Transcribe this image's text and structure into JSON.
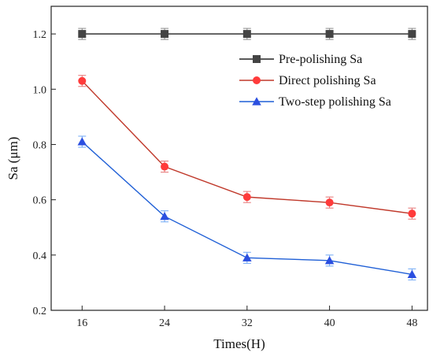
{
  "chart_data": {
    "type": "line",
    "title": "",
    "xlabel": "Times(H)",
    "ylabel": "Sa (μm)",
    "x": [
      16,
      24,
      32,
      40,
      48
    ],
    "xlim": [
      13,
      49.5
    ],
    "ylim": [
      0.2,
      1.3
    ],
    "xticks": [
      16,
      24,
      32,
      40,
      48
    ],
    "yticks": [
      0.2,
      0.4,
      0.6,
      0.8,
      1.0,
      1.2
    ],
    "ytick_labels": [
      "0.2",
      "0.4",
      "0.6",
      "0.8",
      "1.0",
      "1.2"
    ],
    "legend_position": "top-right",
    "grid": false,
    "series": [
      {
        "name": "Pre-polishing Sa",
        "values": [
          1.2,
          1.2,
          1.2,
          1.2,
          1.2
        ],
        "errors": [
          0.02,
          0.02,
          0.02,
          0.02,
          0.02
        ],
        "marker": "square",
        "line_color": "#222222",
        "marker_color": "#444444",
        "error_color": "#888888"
      },
      {
        "name": "Direct polishing Sa",
        "values": [
          1.03,
          0.72,
          0.61,
          0.59,
          0.55
        ],
        "errors": [
          0.02,
          0.02,
          0.02,
          0.02,
          0.02
        ],
        "marker": "circle",
        "line_color": "#c0392b",
        "marker_color": "#ff3b3b",
        "error_color": "#e57373"
      },
      {
        "name": "Two-step polishing Sa",
        "values": [
          0.81,
          0.54,
          0.39,
          0.38,
          0.33
        ],
        "errors": [
          0.02,
          0.02,
          0.02,
          0.02,
          0.02
        ],
        "marker": "triangle",
        "line_color": "#1f5fd6",
        "marker_color": "#2b4fe0",
        "error_color": "#6fa8f5"
      }
    ]
  }
}
